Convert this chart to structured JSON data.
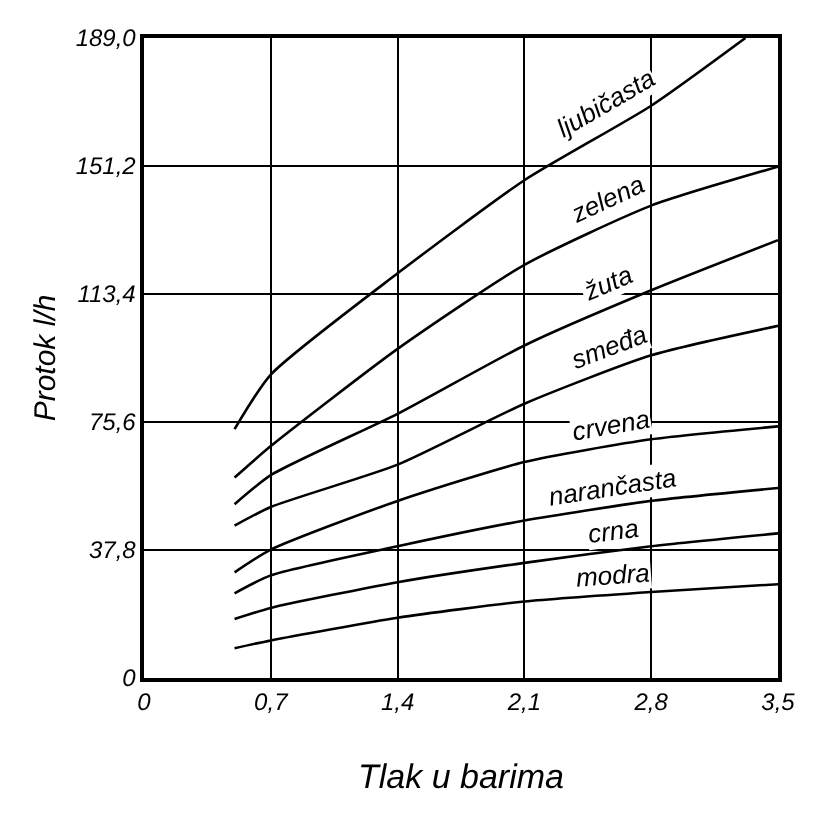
{
  "chart_data": {
    "type": "line",
    "xlabel": "Tlak u barima",
    "ylabel": "Protok l/h",
    "x": [
      0.5,
      0.7,
      1.4,
      2.1,
      2.8,
      3.5
    ],
    "series": [
      {
        "name": "ljubičasta",
        "color": "#000000",
        "x": [
          0.5,
          0.7,
          1.4,
          2.1,
          2.8,
          3.32
        ],
        "values": [
          73.5,
          89.6,
          119.5,
          147,
          169,
          189
        ]
      },
      {
        "name": "zelena",
        "color": "#000000",
        "values": [
          59.2,
          68.5,
          97.2,
          122,
          139.5,
          151
        ]
      },
      {
        "name": "žuta",
        "color": "#000000",
        "values": [
          51.3,
          59.9,
          78,
          98.2,
          114.5,
          129.3
        ]
      },
      {
        "name": "smeđa",
        "color": "#000000",
        "values": [
          45,
          50.5,
          63,
          81,
          95.3,
          104
        ]
      },
      {
        "name": "crvena",
        "color": "#000000",
        "values": [
          31.2,
          37.9,
          52.3,
          63.8,
          70.5,
          74.3
        ]
      },
      {
        "name": "narančasta",
        "color": "#000000",
        "values": [
          25,
          30.3,
          38.9,
          46.5,
          52.3,
          56.1
        ]
      },
      {
        "name": "crna",
        "color": "#000000",
        "values": [
          17.4,
          20.7,
          28.3,
          34,
          38.9,
          42.7
        ]
      },
      {
        "name": "modra",
        "color": "#000000",
        "values": [
          8.8,
          11.1,
          17.8,
          22.6,
          25.4,
          27.7
        ]
      }
    ],
    "xlim": [
      0,
      3.5
    ],
    "ylim": [
      0,
      189.0
    ],
    "xticks": [
      0,
      {
        "value": 0.7,
        "label": "0,7"
      },
      {
        "value": 1.4,
        "label": "1,4"
      },
      {
        "value": 2.1,
        "label": "2,1"
      },
      {
        "value": 2.8,
        "label": "2,8"
      },
      {
        "value": 3.5,
        "label": "3,5"
      }
    ],
    "yticks": [
      0,
      {
        "value": 37.8,
        "label": "37,8"
      },
      {
        "value": 75.6,
        "label": "75,6"
      },
      {
        "value": 113.4,
        "label": "113,4"
      },
      {
        "value": 151.2,
        "label": "151,2"
      },
      {
        "value": 189.0,
        "label": "189,0"
      }
    ],
    "grid": true
  }
}
